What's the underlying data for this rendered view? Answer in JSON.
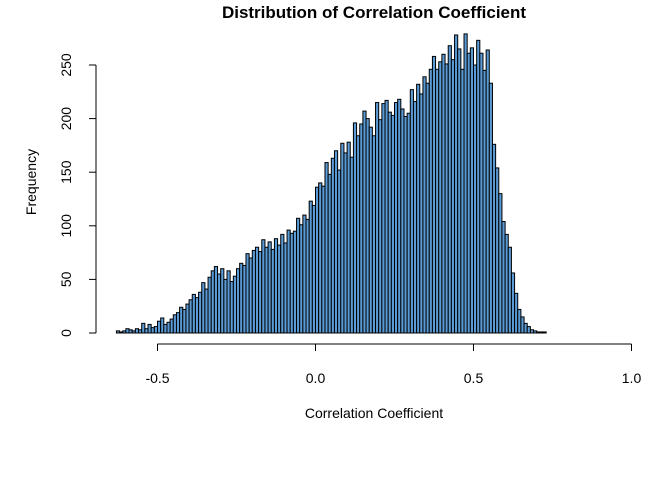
{
  "chart_data": {
    "type": "bar",
    "title": "Distribution of Correlation Coefficient",
    "xlabel": "Correlation Coefficient",
    "ylabel": "Frequency",
    "xlim": [
      -0.66,
      1.0
    ],
    "ylim": [
      0,
      280
    ],
    "x_ticks": [
      "-0.5",
      "0.0",
      "0.5",
      "1.0"
    ],
    "y_ticks": [
      "0",
      "50",
      "100",
      "150",
      "200",
      "250"
    ],
    "bar_fill": "#5b9bd5",
    "bar_stroke": "#000000",
    "bin_start": -0.63,
    "bin_width": 0.01,
    "values": [
      2,
      1,
      2,
      4,
      3,
      2,
      4,
      3,
      9,
      4,
      8,
      5,
      6,
      11,
      14,
      8,
      10,
      13,
      17,
      19,
      24,
      22,
      27,
      31,
      36,
      33,
      38,
      47,
      41,
      52,
      58,
      62,
      55,
      60,
      50,
      58,
      48,
      53,
      60,
      65,
      63,
      74,
      70,
      77,
      80,
      76,
      87,
      80,
      85,
      78,
      88,
      82,
      92,
      84,
      96,
      93,
      95,
      107,
      101,
      110,
      106,
      123,
      119,
      136,
      140,
      137,
      159,
      148,
      163,
      170,
      152,
      177,
      168,
      178,
      164,
      196,
      184,
      195,
      207,
      200,
      192,
      184,
      215,
      199,
      214,
      217,
      206,
      203,
      215,
      218,
      209,
      202,
      205,
      227,
      216,
      232,
      223,
      239,
      233,
      246,
      258,
      246,
      253,
      260,
      251,
      268,
      255,
      278,
      265,
      246,
      279,
      261,
      266,
      250,
      273,
      261,
      245,
      264,
      233,
      176,
      154,
      130,
      104,
      92,
      80,
      56,
      37,
      22,
      15,
      9,
      6,
      3,
      2,
      1,
      1,
      1
    ]
  }
}
